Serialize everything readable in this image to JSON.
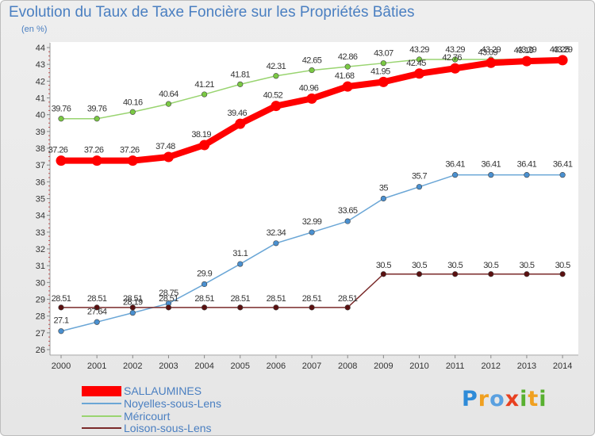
{
  "chart_data": {
    "type": "line",
    "title": "Evolution du Taux de Taxe Foncière sur les Propriétés Bâties",
    "subtitle": "(en %)",
    "xlabel": "",
    "ylabel": "(en %)",
    "x": [
      "2000",
      "2001",
      "2002",
      "2003",
      "2004",
      "2005",
      "2006",
      "2007",
      "2008",
      "2009",
      "2010",
      "2011",
      "2012",
      "2013",
      "2014"
    ],
    "ylim": [
      26,
      44
    ],
    "yticks": [
      "26",
      "27",
      "28",
      "29",
      "30",
      "31",
      "32",
      "33",
      "34",
      "35",
      "36",
      "37",
      "38",
      "39",
      "40",
      "41",
      "42",
      "43",
      "44"
    ],
    "grid": false,
    "legend_position": "bottom-left",
    "series": [
      {
        "name": "SALLAUMINES",
        "color": "#ff0000",
        "marker": "#ff0000",
        "values": [
          37.26,
          37.26,
          37.26,
          37.48,
          38.19,
          39.46,
          40.52,
          40.96,
          41.68,
          41.95,
          42.45,
          42.76,
          43.09,
          43.19,
          43.25
        ],
        "labels": [
          "37.26",
          "37.26",
          "37.26",
          "37.48",
          "38.19",
          "39.46",
          "40.52",
          "40.96",
          "41.68",
          "41.95",
          "42.45",
          "42.76",
          "43.09",
          "43.19",
          "43.25"
        ]
      },
      {
        "name": "Noyelles-sous-Lens",
        "color": "#6aa6d6",
        "marker": "#4a90d0",
        "values": [
          27.1,
          27.64,
          28.19,
          28.75,
          29.9,
          31.1,
          32.34,
          32.99,
          33.65,
          35,
          35.7,
          36.41,
          36.41,
          36.41,
          36.41
        ],
        "labels": [
          "27.1",
          "27.64",
          "28.19",
          "28.75",
          "29.9",
          "31.1",
          "32.34",
          "32.99",
          "33.65",
          "35",
          "35.7",
          "36.41",
          "36.41",
          "36.41",
          "36.41"
        ]
      },
      {
        "name": "Méricourt",
        "color": "#99d470",
        "marker": "#7ac943",
        "values": [
          39.76,
          39.76,
          40.16,
          40.64,
          41.21,
          41.81,
          42.31,
          42.65,
          42.86,
          43.07,
          43.29,
          43.29,
          43.29,
          43.29,
          43.29
        ],
        "labels": [
          "39.76",
          "39.76",
          "40.16",
          "40.64",
          "41.21",
          "41.81",
          "42.31",
          "42.65",
          "42.86",
          "43.07",
          "43.29",
          "43.29",
          "43.29",
          "43.29",
          "43.29"
        ]
      },
      {
        "name": "Loison-sous-Lens",
        "color": "#7a2a2a",
        "marker": "#5a1010",
        "values": [
          28.51,
          28.51,
          28.51,
          28.51,
          28.51,
          28.51,
          28.51,
          28.51,
          28.51,
          30.5,
          30.5,
          30.5,
          30.5,
          30.5,
          30.5
        ],
        "labels": [
          "28.51",
          "28.51",
          "28.51",
          "28.51",
          "28.51",
          "28.51",
          "28.51",
          "28.51",
          "28.51",
          "30.5",
          "30.5",
          "30.5",
          "30.5",
          "30.5",
          "30.5"
        ]
      }
    ]
  },
  "brand": {
    "letters": [
      "P",
      "r",
      "o",
      "x",
      "i",
      "t",
      "i"
    ],
    "colors": [
      "#2e8bd8",
      "#f0a020",
      "#5aa0e0",
      "#e84020",
      "#58b030",
      "#f0a020",
      "#58b030"
    ]
  }
}
